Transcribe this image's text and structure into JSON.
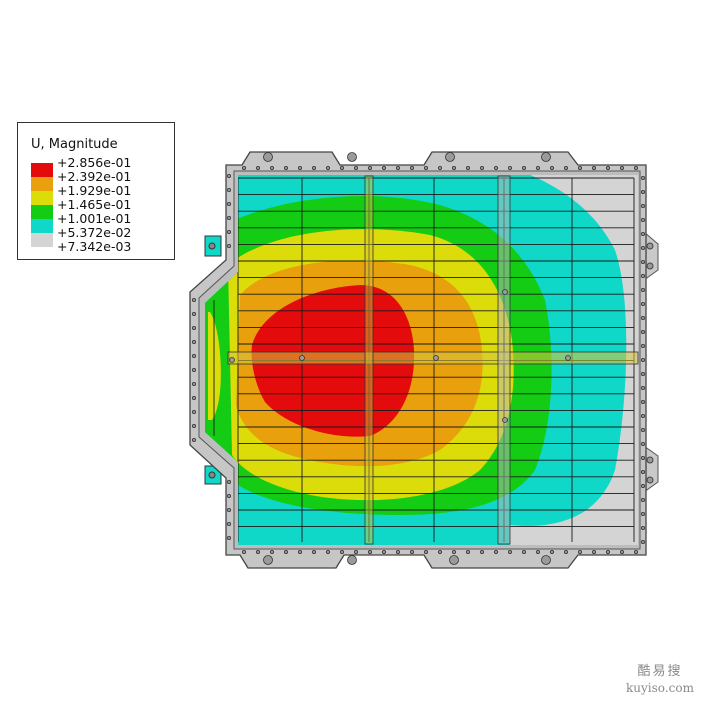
{
  "legend": {
    "title": "U, Magnitude",
    "entries": [
      {
        "label": "+2.856e-01",
        "color": "#e30b0b"
      },
      {
        "label": "+2.392e-01",
        "color": "#e8a10c"
      },
      {
        "label": "+1.929e-01",
        "color": "#dcdc0a"
      },
      {
        "label": "+1.465e-01",
        "color": "#14cc14"
      },
      {
        "label": "+1.001e-01",
        "color": "#10d8c8"
      },
      {
        "label": "+5.372e-02",
        "color": "#d4d4d4"
      },
      {
        "label": "+7.342e-03",
        "color": ""
      }
    ]
  },
  "watermark": {
    "cn": "酷易搜",
    "url": "kuyiso.com"
  }
}
